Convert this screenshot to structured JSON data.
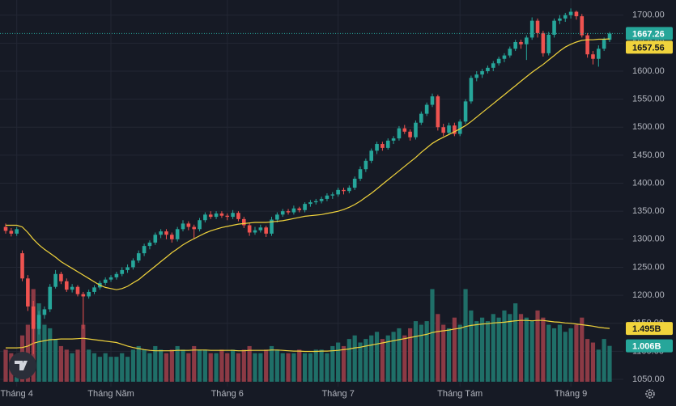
{
  "chart_data": {
    "type": "candlestick",
    "ylim": [
      1037,
      1727
    ],
    "yticks": [
      {
        "value": 1050,
        "label": "1050.00"
      },
      {
        "value": 1100,
        "label": "1100.00"
      },
      {
        "value": 1150,
        "label": "1150.00"
      },
      {
        "value": 1200,
        "label": "1200.00"
      },
      {
        "value": 1250,
        "label": "1250.00"
      },
      {
        "value": 1300,
        "label": "1300.00"
      },
      {
        "value": 1350,
        "label": "1350.00"
      },
      {
        "value": 1400,
        "label": "1400.00"
      },
      {
        "value": 1450,
        "label": "1450.00"
      },
      {
        "value": 1500,
        "label": "1500.00"
      },
      {
        "value": 1550,
        "label": "1550.00"
      },
      {
        "value": 1600,
        "label": "1600.00"
      },
      {
        "value": 1650,
        "label": "1650.00"
      },
      {
        "value": 1700,
        "label": "1700.00"
      }
    ],
    "xticks": [
      {
        "value": 2,
        "label": "Tháng 4"
      },
      {
        "value": 19,
        "label": "Tháng Năm"
      },
      {
        "value": 40,
        "label": "Tháng 6"
      },
      {
        "value": 60,
        "label": "Tháng 7"
      },
      {
        "value": 82,
        "label": "Tháng Tám"
      },
      {
        "value": 102,
        "label": "Tháng 9"
      }
    ],
    "grid": true,
    "up_color": "#26a69a",
    "down_color": "#ef5350",
    "ohlc": [
      [
        1322,
        1328,
        1310,
        1315
      ],
      [
        1315,
        1320,
        1305,
        1310
      ],
      [
        1310,
        1322,
        1306,
        1318
      ],
      [
        1275,
        1280,
        1225,
        1230
      ],
      [
        1230,
        1236,
        1172,
        1180
      ],
      [
        1180,
        1190,
        1095,
        1140
      ],
      [
        1140,
        1172,
        1130,
        1165
      ],
      [
        1165,
        1180,
        1158,
        1175
      ],
      [
        1175,
        1220,
        1170,
        1215
      ],
      [
        1215,
        1245,
        1212,
        1238
      ],
      [
        1238,
        1242,
        1220,
        1225
      ],
      [
        1225,
        1230,
        1206,
        1210
      ],
      [
        1210,
        1220,
        1205,
        1215
      ],
      [
        1215,
        1218,
        1198,
        1202
      ],
      [
        1202,
        1206,
        1140,
        1198
      ],
      [
        1198,
        1210,
        1194,
        1206
      ],
      [
        1206,
        1218,
        1202,
        1214
      ],
      [
        1214,
        1226,
        1210,
        1222
      ],
      [
        1222,
        1232,
        1218,
        1228
      ],
      [
        1228,
        1236,
        1224,
        1232
      ],
      [
        1232,
        1242,
        1228,
        1238
      ],
      [
        1238,
        1250,
        1234,
        1245
      ],
      [
        1245,
        1255,
        1240,
        1250
      ],
      [
        1250,
        1266,
        1246,
        1262
      ],
      [
        1262,
        1280,
        1258,
        1275
      ],
      [
        1275,
        1292,
        1270,
        1288
      ],
      [
        1288,
        1298,
        1282,
        1294
      ],
      [
        1294,
        1312,
        1290,
        1308
      ],
      [
        1308,
        1318,
        1302,
        1314
      ],
      [
        1314,
        1318,
        1300,
        1308
      ],
      [
        1308,
        1312,
        1294,
        1300
      ],
      [
        1300,
        1322,
        1296,
        1318
      ],
      [
        1318,
        1334,
        1314,
        1328
      ],
      [
        1328,
        1332,
        1316,
        1322
      ],
      [
        1322,
        1326,
        1300,
        1318
      ],
      [
        1318,
        1338,
        1314,
        1334
      ],
      [
        1334,
        1348,
        1330,
        1344
      ],
      [
        1344,
        1350,
        1336,
        1340
      ],
      [
        1340,
        1350,
        1336,
        1346
      ],
      [
        1346,
        1350,
        1338,
        1342
      ],
      [
        1342,
        1346,
        1334,
        1340
      ],
      [
        1340,
        1352,
        1336,
        1347
      ],
      [
        1347,
        1350,
        1332,
        1336
      ],
      [
        1336,
        1340,
        1320,
        1325
      ],
      [
        1325,
        1330,
        1306,
        1312
      ],
      [
        1312,
        1322,
        1308,
        1316
      ],
      [
        1316,
        1326,
        1312,
        1321
      ],
      [
        1321,
        1324,
        1304,
        1310
      ],
      [
        1310,
        1340,
        1306,
        1335
      ],
      [
        1335,
        1348,
        1330,
        1344
      ],
      [
        1344,
        1354,
        1340,
        1350
      ],
      [
        1350,
        1354,
        1344,
        1348
      ],
      [
        1348,
        1360,
        1344,
        1355
      ],
      [
        1355,
        1358,
        1348,
        1352
      ],
      [
        1352,
        1366,
        1348,
        1363
      ],
      [
        1363,
        1370,
        1358,
        1366
      ],
      [
        1366,
        1372,
        1362,
        1368
      ],
      [
        1368,
        1376,
        1364,
        1372
      ],
      [
        1372,
        1382,
        1368,
        1378
      ],
      [
        1378,
        1384,
        1372,
        1380
      ],
      [
        1380,
        1392,
        1376,
        1388
      ],
      [
        1388,
        1392,
        1380,
        1386
      ],
      [
        1386,
        1396,
        1382,
        1392
      ],
      [
        1392,
        1412,
        1388,
        1408
      ],
      [
        1408,
        1430,
        1404,
        1425
      ],
      [
        1425,
        1444,
        1420,
        1440
      ],
      [
        1440,
        1462,
        1436,
        1458
      ],
      [
        1458,
        1474,
        1452,
        1470
      ],
      [
        1470,
        1474,
        1458,
        1463
      ],
      [
        1463,
        1480,
        1460,
        1476
      ],
      [
        1476,
        1484,
        1470,
        1480
      ],
      [
        1480,
        1502,
        1476,
        1498
      ],
      [
        1498,
        1504,
        1488,
        1492
      ],
      [
        1492,
        1496,
        1476,
        1482
      ],
      [
        1482,
        1512,
        1478,
        1508
      ],
      [
        1508,
        1528,
        1504,
        1524
      ],
      [
        1524,
        1544,
        1520,
        1540
      ],
      [
        1540,
        1560,
        1536,
        1555
      ],
      [
        1555,
        1558,
        1494,
        1500
      ],
      [
        1500,
        1506,
        1484,
        1490
      ],
      [
        1490,
        1508,
        1486,
        1503
      ],
      [
        1503,
        1508,
        1484,
        1488
      ],
      [
        1488,
        1514,
        1484,
        1510
      ],
      [
        1510,
        1550,
        1506,
        1546
      ],
      [
        1546,
        1592,
        1542,
        1588
      ],
      [
        1588,
        1600,
        1582,
        1594
      ],
      [
        1594,
        1604,
        1588,
        1600
      ],
      [
        1600,
        1610,
        1596,
        1606
      ],
      [
        1606,
        1618,
        1600,
        1614
      ],
      [
        1614,
        1626,
        1610,
        1622
      ],
      [
        1622,
        1632,
        1616,
        1628
      ],
      [
        1628,
        1644,
        1624,
        1640
      ],
      [
        1640,
        1656,
        1636,
        1652
      ],
      [
        1652,
        1656,
        1640,
        1648
      ],
      [
        1648,
        1664,
        1620,
        1660
      ],
      [
        1660,
        1696,
        1656,
        1690
      ],
      [
        1690,
        1694,
        1660,
        1668
      ],
      [
        1668,
        1672,
        1626,
        1632
      ],
      [
        1632,
        1670,
        1628,
        1665
      ],
      [
        1665,
        1694,
        1660,
        1690
      ],
      [
        1690,
        1700,
        1684,
        1694
      ],
      [
        1694,
        1704,
        1688,
        1700
      ],
      [
        1700,
        1712,
        1694,
        1706
      ],
      [
        1706,
        1708,
        1692,
        1698
      ],
      [
        1698,
        1702,
        1660,
        1664
      ],
      [
        1664,
        1668,
        1624,
        1630
      ],
      [
        1630,
        1636,
        1612,
        1622
      ],
      [
        1622,
        1646,
        1608,
        1640
      ],
      [
        1640,
        1660,
        1636,
        1656
      ],
      [
        1656,
        1670,
        1652,
        1667.26
      ]
    ],
    "ma": {
      "color": "#f0d33c",
      "values": [
        1325,
        1325,
        1325,
        1322,
        1312,
        1300,
        1290,
        1282,
        1275,
        1268,
        1260,
        1254,
        1248,
        1242,
        1236,
        1230,
        1224,
        1218,
        1214,
        1212,
        1210,
        1212,
        1216,
        1222,
        1228,
        1236,
        1244,
        1252,
        1260,
        1268,
        1276,
        1283,
        1290,
        1296,
        1301,
        1306,
        1311,
        1315,
        1318,
        1321,
        1323,
        1325,
        1327,
        1328,
        1329,
        1330,
        1330,
        1330,
        1331,
        1332,
        1333,
        1335,
        1337,
        1339,
        1341,
        1342,
        1343,
        1344,
        1346,
        1348,
        1350,
        1353,
        1357,
        1362,
        1368,
        1375,
        1382,
        1390,
        1398,
        1406,
        1414,
        1422,
        1430,
        1438,
        1446,
        1455,
        1463,
        1471,
        1477,
        1482,
        1487,
        1492,
        1497,
        1503,
        1510,
        1518,
        1526,
        1534,
        1542,
        1550,
        1558,
        1566,
        1574,
        1582,
        1590,
        1598,
        1605,
        1612,
        1620,
        1628,
        1636,
        1643,
        1648,
        1652,
        1655,
        1656,
        1656,
        1657,
        1657,
        1657.56
      ]
    },
    "volume": {
      "up_color": "#1f6f68",
      "down_color": "#8c3a45",
      "vlim": [
        0,
        3.2
      ],
      "last_label": "1.006B",
      "values": [
        0.9,
        0.8,
        0.7,
        1.3,
        1.6,
        2.6,
        2.2,
        1.6,
        1.5,
        1.2,
        1.0,
        0.9,
        0.8,
        0.9,
        1.6,
        0.9,
        0.8,
        0.7,
        0.8,
        0.7,
        0.7,
        0.8,
        0.7,
        0.9,
        1.0,
        0.9,
        0.8,
        1.0,
        0.9,
        0.8,
        0.9,
        1.0,
        0.9,
        0.8,
        1.0,
        0.9,
        0.9,
        0.8,
        0.8,
        0.9,
        0.8,
        0.9,
        0.8,
        0.9,
        1.0,
        0.8,
        0.8,
        0.9,
        1.0,
        0.9,
        0.8,
        0.8,
        0.8,
        0.9,
        0.8,
        0.8,
        0.9,
        0.9,
        0.8,
        1.0,
        1.1,
        1.0,
        1.2,
        1.3,
        1.1,
        1.2,
        1.3,
        1.4,
        1.2,
        1.3,
        1.4,
        1.5,
        1.3,
        1.5,
        1.7,
        1.6,
        1.7,
        2.6,
        1.9,
        1.6,
        1.5,
        1.8,
        1.6,
        2.6,
        2.0,
        1.7,
        1.8,
        1.7,
        1.9,
        1.8,
        2.0,
        1.9,
        2.2,
        1.9,
        1.8,
        1.7,
        2.0,
        1.8,
        1.6,
        1.5,
        1.6,
        1.4,
        1.5,
        1.6,
        1.8,
        1.2,
        1.1,
        0.9,
        1.2,
        1.006
      ]
    },
    "volume_ma": {
      "color": "#f0d33c",
      "last_label": "1.495B",
      "values": [
        0.95,
        0.95,
        0.95,
        0.96,
        1.0,
        1.08,
        1.12,
        1.15,
        1.18,
        1.19,
        1.2,
        1.2,
        1.2,
        1.21,
        1.22,
        1.2,
        1.18,
        1.16,
        1.14,
        1.12,
        1.1,
        1.05,
        1.0,
        0.96,
        0.93,
        0.9,
        0.88,
        0.87,
        0.87,
        0.87,
        0.87,
        0.88,
        0.88,
        0.88,
        0.89,
        0.89,
        0.89,
        0.88,
        0.88,
        0.88,
        0.88,
        0.88,
        0.87,
        0.87,
        0.88,
        0.88,
        0.88,
        0.88,
        0.89,
        0.89,
        0.88,
        0.87,
        0.86,
        0.86,
        0.85,
        0.85,
        0.85,
        0.86,
        0.86,
        0.87,
        0.88,
        0.9,
        0.92,
        0.95,
        0.97,
        1.0,
        1.03,
        1.06,
        1.09,
        1.12,
        1.15,
        1.18,
        1.21,
        1.24,
        1.27,
        1.3,
        1.33,
        1.38,
        1.41,
        1.43,
        1.45,
        1.48,
        1.5,
        1.55,
        1.58,
        1.6,
        1.62,
        1.63,
        1.65,
        1.66,
        1.67,
        1.69,
        1.71,
        1.72,
        1.72,
        1.71,
        1.72,
        1.72,
        1.7,
        1.68,
        1.67,
        1.65,
        1.64,
        1.62,
        1.6,
        1.58,
        1.56,
        1.53,
        1.51,
        1.495
      ]
    }
  }
}
